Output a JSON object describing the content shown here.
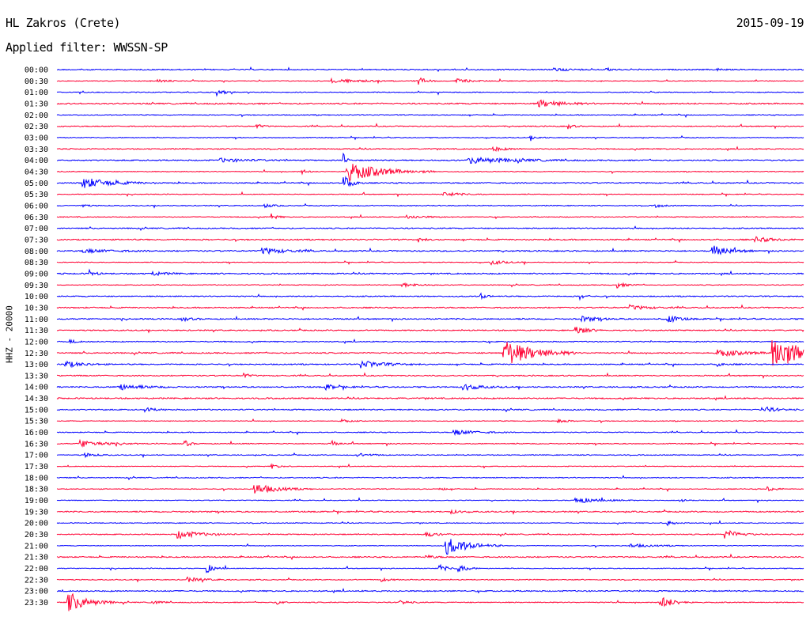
{
  "header": {
    "station": "HL Zakros (Crete)",
    "date": "2015-09-19",
    "filter": "Applied filter: WWSSN-SP"
  },
  "chart_data": {
    "type": "line",
    "title": "HL Zakros (Crete)",
    "subtitle": "Applied filter: WWSSN-SP",
    "ylabel": "HHZ - 20000",
    "row_labels": [
      "00:00",
      "00:30",
      "01:00",
      "01:30",
      "02:00",
      "02:30",
      "03:00",
      "03:30",
      "04:00",
      "04:30",
      "05:00",
      "05:30",
      "06:00",
      "06:30",
      "07:00",
      "07:30",
      "08:00",
      "08:30",
      "09:00",
      "09:30",
      "10:00",
      "10:30",
      "11:00",
      "11:30",
      "12:00",
      "12:30",
      "13:00",
      "13:30",
      "14:00",
      "14:30",
      "15:00",
      "15:30",
      "16:00",
      "16:30",
      "17:00",
      "17:30",
      "18:00",
      "18:30",
      "19:00",
      "19:30",
      "20:00",
      "20:30",
      "21:00",
      "21:30",
      "22:00",
      "22:30",
      "23:00",
      "23:30"
    ],
    "row_minutes": 30,
    "colors": [
      "#0000ff",
      "#ff0033"
    ],
    "events": [
      {
        "row": 0,
        "minute": 19.8,
        "amp": 0.25,
        "dur": 0.5
      },
      {
        "row": 0,
        "minute": 22.0,
        "amp": 0.2,
        "dur": 0.3
      },
      {
        "row": 0,
        "minute": 26.5,
        "amp": 0.15,
        "dur": 0.2
      },
      {
        "row": 1,
        "minute": 4.0,
        "amp": 0.15,
        "dur": 0.4
      },
      {
        "row": 1,
        "minute": 11.0,
        "amp": 0.2,
        "dur": 1.2
      },
      {
        "row": 1,
        "minute": 14.5,
        "amp": 0.4,
        "dur": 0.3
      },
      {
        "row": 1,
        "minute": 16.0,
        "amp": 0.25,
        "dur": 0.5
      },
      {
        "row": 2,
        "minute": 6.4,
        "amp": 0.35,
        "dur": 0.3
      },
      {
        "row": 3,
        "minute": 19.3,
        "amp": 0.4,
        "dur": 0.8
      },
      {
        "row": 5,
        "minute": 8.0,
        "amp": 0.25,
        "dur": 0.2
      },
      {
        "row": 5,
        "minute": 20.5,
        "amp": 0.3,
        "dur": 0.2
      },
      {
        "row": 6,
        "minute": 19.0,
        "amp": 0.2,
        "dur": 0.3
      },
      {
        "row": 7,
        "minute": 17.5,
        "amp": 0.25,
        "dur": 0.4
      },
      {
        "row": 8,
        "minute": 6.5,
        "amp": 0.2,
        "dur": 1.0
      },
      {
        "row": 8,
        "minute": 16.5,
        "amp": 0.35,
        "dur": 1.5
      },
      {
        "row": 8,
        "minute": 11.5,
        "amp": 0.9,
        "dur": 0.1
      },
      {
        "row": 9,
        "minute": 11.6,
        "amp": 1.1,
        "dur": 1.2
      },
      {
        "row": 9,
        "minute": 9.8,
        "amp": 0.3,
        "dur": 0.2
      },
      {
        "row": 10,
        "minute": 1.0,
        "amp": 0.6,
        "dur": 1.0
      },
      {
        "row": 10,
        "minute": 11.5,
        "amp": 0.8,
        "dur": 0.3
      },
      {
        "row": 11,
        "minute": 15.5,
        "amp": 0.25,
        "dur": 0.6
      },
      {
        "row": 12,
        "minute": 1.0,
        "amp": 0.2,
        "dur": 0.2
      },
      {
        "row": 12,
        "minute": 8.3,
        "amp": 0.2,
        "dur": 0.3
      },
      {
        "row": 12,
        "minute": 24.0,
        "amp": 0.2,
        "dur": 0.3
      },
      {
        "row": 13,
        "minute": 8.6,
        "amp": 0.35,
        "dur": 0.2
      },
      {
        "row": 13,
        "minute": 14.0,
        "amp": 0.2,
        "dur": 0.6
      },
      {
        "row": 15,
        "minute": 14.5,
        "amp": 0.25,
        "dur": 0.2
      },
      {
        "row": 15,
        "minute": 28.0,
        "amp": 0.3,
        "dur": 0.6
      },
      {
        "row": 16,
        "minute": 1.0,
        "amp": 0.2,
        "dur": 1.0
      },
      {
        "row": 16,
        "minute": 8.2,
        "amp": 0.35,
        "dur": 0.8
      },
      {
        "row": 16,
        "minute": 26.3,
        "amp": 0.6,
        "dur": 0.6
      },
      {
        "row": 17,
        "minute": 17.4,
        "amp": 0.25,
        "dur": 0.5
      },
      {
        "row": 18,
        "minute": 1.3,
        "amp": 0.35,
        "dur": 0.2
      },
      {
        "row": 18,
        "minute": 3.8,
        "amp": 0.2,
        "dur": 0.5
      },
      {
        "row": 19,
        "minute": 13.8,
        "amp": 0.25,
        "dur": 0.5
      },
      {
        "row": 19,
        "minute": 22.5,
        "amp": 0.3,
        "dur": 0.3
      },
      {
        "row": 20,
        "minute": 17.0,
        "amp": 0.35,
        "dur": 0.2
      },
      {
        "row": 20,
        "minute": 21.0,
        "amp": 0.3,
        "dur": 0.2
      },
      {
        "row": 21,
        "minute": 23.0,
        "amp": 0.25,
        "dur": 0.6
      },
      {
        "row": 22,
        "minute": 5.0,
        "amp": 0.25,
        "dur": 0.3
      },
      {
        "row": 22,
        "minute": 21.0,
        "amp": 0.3,
        "dur": 0.6
      },
      {
        "row": 22,
        "minute": 24.5,
        "amp": 0.45,
        "dur": 0.4
      },
      {
        "row": 23,
        "minute": 20.8,
        "amp": 0.5,
        "dur": 0.4
      },
      {
        "row": 24,
        "minute": 0.5,
        "amp": 0.2,
        "dur": 0.2
      },
      {
        "row": 25,
        "minute": 17.9,
        "amp": 1.6,
        "dur": 1.0
      },
      {
        "row": 25,
        "minute": 26.5,
        "amp": 0.35,
        "dur": 1.0
      },
      {
        "row": 25,
        "minute": 28.7,
        "amp": 2.0,
        "dur": 1.0
      },
      {
        "row": 26,
        "minute": 0.3,
        "amp": 0.35,
        "dur": 0.6
      },
      {
        "row": 26,
        "minute": 12.2,
        "amp": 0.4,
        "dur": 0.8
      },
      {
        "row": 26,
        "minute": 26.5,
        "amp": 0.2,
        "dur": 0.3
      },
      {
        "row": 27,
        "minute": 7.5,
        "amp": 0.25,
        "dur": 0.2
      },
      {
        "row": 28,
        "minute": 2.4,
        "amp": 0.35,
        "dur": 0.8
      },
      {
        "row": 28,
        "minute": 10.7,
        "amp": 0.3,
        "dur": 0.5
      },
      {
        "row": 28,
        "minute": 16.3,
        "amp": 0.35,
        "dur": 0.6
      },
      {
        "row": 30,
        "minute": 3.5,
        "amp": 0.2,
        "dur": 0.4
      },
      {
        "row": 30,
        "minute": 28.3,
        "amp": 0.35,
        "dur": 0.5
      },
      {
        "row": 31,
        "minute": 11.4,
        "amp": 0.2,
        "dur": 0.3
      },
      {
        "row": 31,
        "minute": 20.1,
        "amp": 0.25,
        "dur": 0.3
      },
      {
        "row": 32,
        "minute": 15.9,
        "amp": 0.3,
        "dur": 0.8
      },
      {
        "row": 33,
        "minute": 0.9,
        "amp": 0.4,
        "dur": 0.8
      },
      {
        "row": 33,
        "minute": 5.1,
        "amp": 0.4,
        "dur": 0.2
      },
      {
        "row": 33,
        "minute": 11.0,
        "amp": 0.35,
        "dur": 0.2
      },
      {
        "row": 34,
        "minute": 1.1,
        "amp": 0.2,
        "dur": 0.4
      },
      {
        "row": 34,
        "minute": 12.0,
        "amp": 0.2,
        "dur": 0.5
      },
      {
        "row": 35,
        "minute": 8.6,
        "amp": 0.25,
        "dur": 0.3
      },
      {
        "row": 37,
        "minute": 7.9,
        "amp": 0.6,
        "dur": 0.8
      },
      {
        "row": 37,
        "minute": 15.3,
        "amp": 0.25,
        "dur": 0.2
      },
      {
        "row": 37,
        "minute": 28.5,
        "amp": 0.3,
        "dur": 0.3
      },
      {
        "row": 38,
        "minute": 20.8,
        "amp": 0.35,
        "dur": 0.8
      },
      {
        "row": 38,
        "minute": 25.0,
        "amp": 0.3,
        "dur": 0.2
      },
      {
        "row": 39,
        "minute": 15.8,
        "amp": 0.2,
        "dur": 0.3
      },
      {
        "row": 40,
        "minute": 24.5,
        "amp": 0.25,
        "dur": 0.3
      },
      {
        "row": 41,
        "minute": 4.8,
        "amp": 0.45,
        "dur": 0.8
      },
      {
        "row": 41,
        "minute": 14.8,
        "amp": 0.25,
        "dur": 0.4
      },
      {
        "row": 41,
        "minute": 26.8,
        "amp": 0.5,
        "dur": 0.5
      },
      {
        "row": 42,
        "minute": 15.6,
        "amp": 1.0,
        "dur": 0.8
      },
      {
        "row": 42,
        "minute": 23.0,
        "amp": 0.2,
        "dur": 0.8
      },
      {
        "row": 43,
        "minute": 14.8,
        "amp": 0.2,
        "dur": 0.3
      },
      {
        "row": 44,
        "minute": 6.0,
        "amp": 0.5,
        "dur": 0.3
      },
      {
        "row": 44,
        "minute": 15.3,
        "amp": 0.45,
        "dur": 0.3
      },
      {
        "row": 44,
        "minute": 16.1,
        "amp": 0.5,
        "dur": 0.3
      },
      {
        "row": 45,
        "minute": 5.2,
        "amp": 0.25,
        "dur": 0.6
      },
      {
        "row": 45,
        "minute": 13.0,
        "amp": 0.2,
        "dur": 0.3
      },
      {
        "row": 47,
        "minute": 0.4,
        "amp": 1.1,
        "dur": 0.7
      },
      {
        "row": 47,
        "minute": 3.8,
        "amp": 0.25,
        "dur": 0.3
      },
      {
        "row": 47,
        "minute": 8.8,
        "amp": 0.3,
        "dur": 0.2
      },
      {
        "row": 47,
        "minute": 13.7,
        "amp": 0.3,
        "dur": 0.3
      },
      {
        "row": 47,
        "minute": 24.2,
        "amp": 0.7,
        "dur": 0.5
      }
    ]
  }
}
